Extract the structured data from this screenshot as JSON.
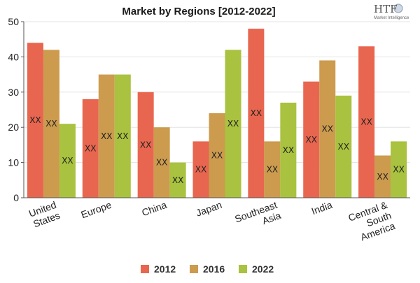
{
  "logo": {
    "text": "HTF",
    "subtitle": "Market Intelligence"
  },
  "chart_data": {
    "type": "bar",
    "title": "Market by Regions [2012-2022]",
    "xlabel": "",
    "ylabel": "",
    "ylim": [
      0,
      50
    ],
    "yticks": [
      0,
      10,
      20,
      30,
      40,
      50
    ],
    "grid": true,
    "legend_position": "bottom",
    "categories": [
      [
        "United",
        "States"
      ],
      [
        "Europe"
      ],
      [
        "China"
      ],
      [
        "Japan"
      ],
      [
        "Southeast",
        "Asia"
      ],
      [
        "India"
      ],
      [
        "Central &",
        "South",
        "America"
      ]
    ],
    "series": [
      {
        "name": "2012",
        "color": "#e8664f",
        "values": [
          44,
          28,
          30,
          16,
          48,
          33,
          43
        ]
      },
      {
        "name": "2016",
        "color": "#cc9b4e",
        "values": [
          42,
          35,
          20,
          24,
          16,
          39,
          12
        ]
      },
      {
        "name": "2022",
        "color": "#a9c23f",
        "values": [
          21,
          35,
          10,
          42,
          27,
          29,
          16
        ]
      }
    ],
    "data_label": "XX"
  }
}
